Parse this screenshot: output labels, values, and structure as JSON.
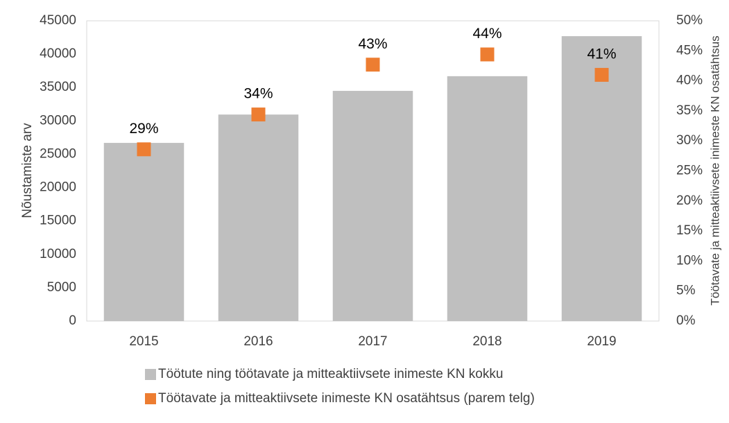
{
  "chart_data": {
    "type": "bar",
    "categories": [
      "2015",
      "2016",
      "2017",
      "2018",
      "2019"
    ],
    "ylabel": "Nõustamiste arv",
    "y2label": "Töötavate ja mitteaktiivsete inimeste KN osatähtsus",
    "ylim": [
      0,
      45000
    ],
    "yticks": [
      0,
      5000,
      10000,
      15000,
      20000,
      25000,
      30000,
      35000,
      40000,
      45000
    ],
    "y2lim": [
      0,
      50
    ],
    "y2ticks": [
      {
        "value": 0,
        "label": "0%"
      },
      {
        "value": 5,
        "label": "5%"
      },
      {
        "value": 10,
        "label": "10%"
      },
      {
        "value": 15,
        "label": "15%"
      },
      {
        "value": 20,
        "label": "20%"
      },
      {
        "value": 25,
        "label": "25%"
      },
      {
        "value": 30,
        "label": "30%"
      },
      {
        "value": 35,
        "label": "35%"
      },
      {
        "value": 40,
        "label": "40%"
      },
      {
        "value": 45,
        "label": "45%"
      },
      {
        "value": 50,
        "label": "50%"
      }
    ],
    "series": [
      {
        "name": "Töötute ning töötavate ja mitteaktiivsete inimeste KN kokku",
        "type": "bar",
        "color": "#bfbfbf",
        "values": [
          26700,
          30950,
          34500,
          36700,
          42700
        ]
      },
      {
        "name": "Töötavate ja mitteaktiivsete inimeste KN osatähtsus (parem telg)",
        "type": "scatter",
        "axis": "y2",
        "color": "#ed7d31",
        "values": [
          28.6,
          34.4,
          42.7,
          44.4,
          41.0
        ],
        "value_labels": [
          "29%",
          "34%",
          "43%",
          "44%",
          "41%"
        ]
      }
    ]
  }
}
